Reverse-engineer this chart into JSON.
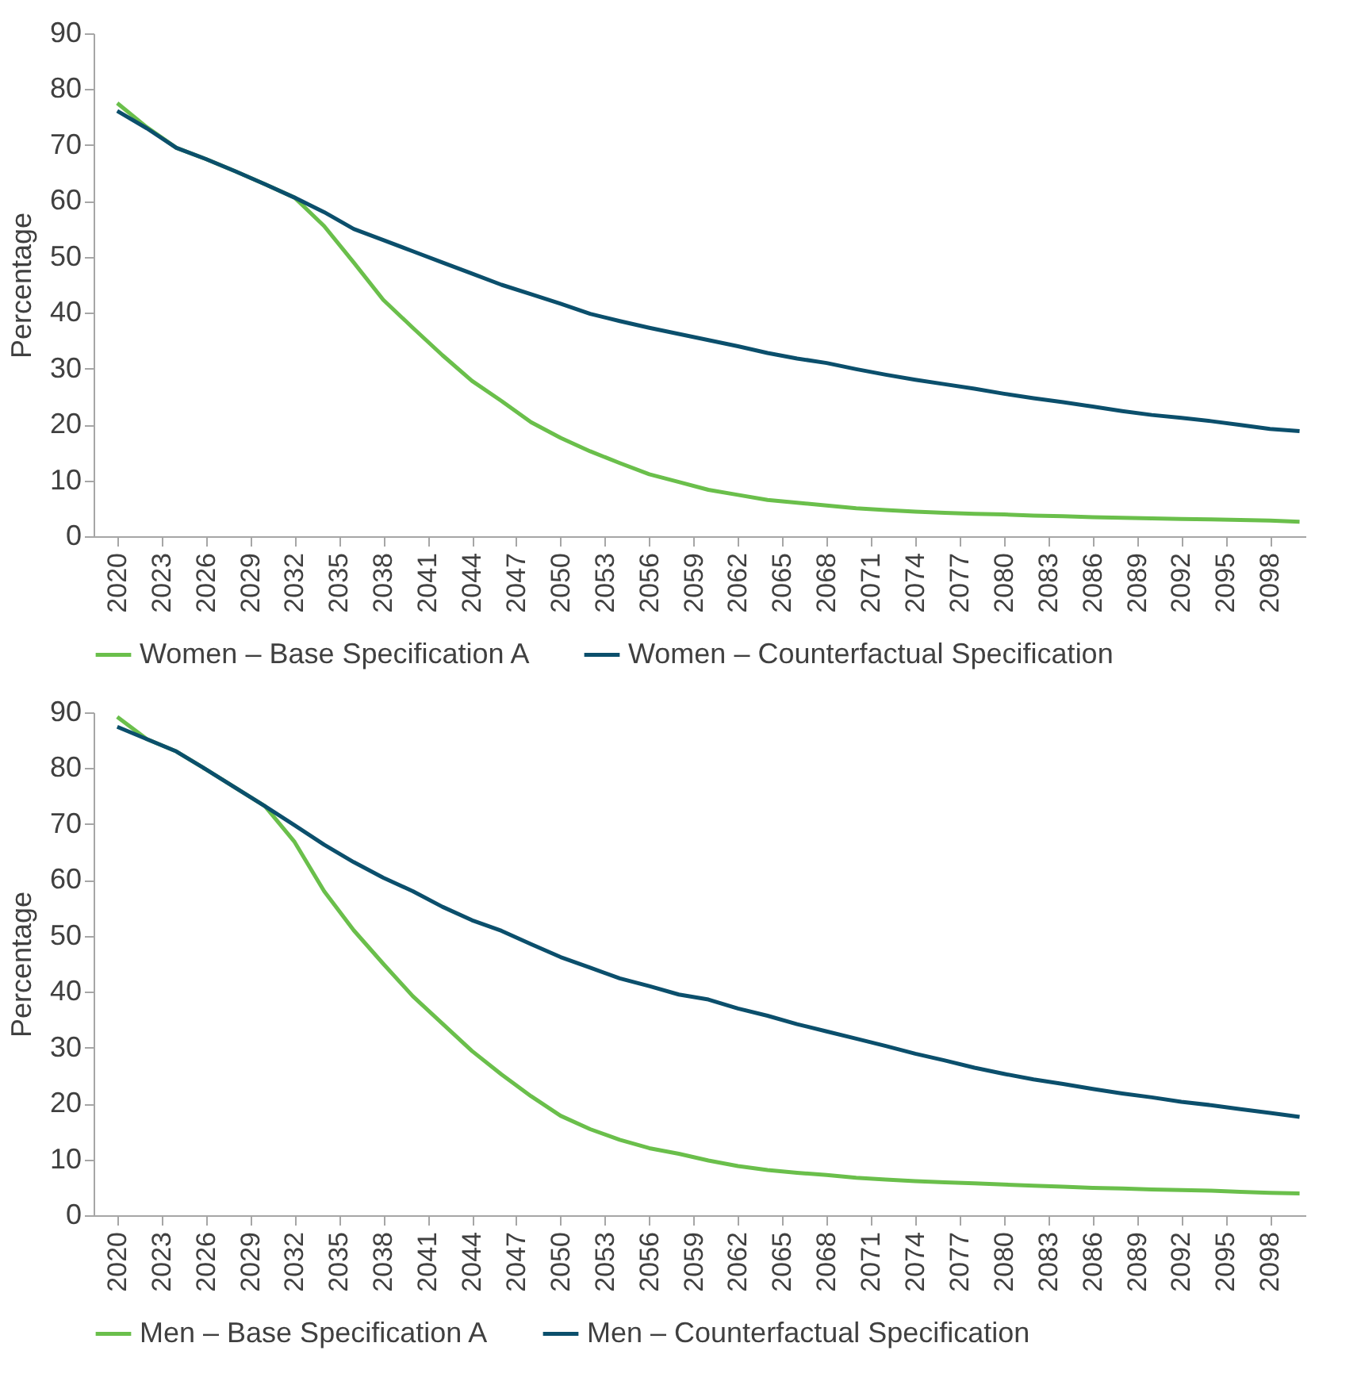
{
  "chart_data": [
    {
      "type": "line",
      "ylabel": "Percentage",
      "legend": "bottom",
      "grid": false,
      "x": [
        2020,
        2022,
        2024,
        2026,
        2028,
        2030,
        2032,
        2034,
        2036,
        2038,
        2040,
        2042,
        2044,
        2046,
        2048,
        2050,
        2052,
        2054,
        2056,
        2058,
        2060,
        2062,
        2064,
        2066,
        2068,
        2070,
        2072,
        2074,
        2076,
        2078,
        2080,
        2082,
        2084,
        2086,
        2088,
        2090,
        2092,
        2094,
        2096,
        2098,
        2100
      ],
      "xlim": [
        2018.4,
        2100.4
      ],
      "xticks": [
        2020,
        2023,
        2026,
        2029,
        2032,
        2035,
        2038,
        2041,
        2044,
        2047,
        2050,
        2053,
        2056,
        2059,
        2062,
        2065,
        2068,
        2071,
        2074,
        2077,
        2080,
        2083,
        2086,
        2089,
        2092,
        2095,
        2098
      ],
      "ylim": [
        0,
        90
      ],
      "yticks": [
        0,
        10,
        20,
        30,
        40,
        50,
        60,
        70,
        80,
        90
      ],
      "series": [
        {
          "name": "Women – Base Specification A",
          "color": "#6abf4b",
          "values": [
            77.5,
            73.2,
            69.5,
            67.5,
            65.3,
            63,
            60.6,
            55.5,
            49,
            42.3,
            37.3,
            32.4,
            27.8,
            24.2,
            20.4,
            17.6,
            15.2,
            13.1,
            11.1,
            9.7,
            8.3,
            7.4,
            6.5,
            6,
            5.5,
            5,
            4.7,
            4.4,
            4.2,
            4,
            3.9,
            3.7,
            3.6,
            3.4,
            3.3,
            3.2,
            3.1,
            3,
            2.9,
            2.8,
            2.6
          ]
        },
        {
          "name": "Women – Counterfactual Specification",
          "color": "#0b4f6c",
          "values": [
            76.1,
            73,
            69.5,
            67.5,
            65.3,
            63,
            60.6,
            58,
            55,
            53,
            51,
            49,
            47,
            45,
            43.3,
            41.6,
            39.8,
            38.5,
            37.3,
            36.2,
            35.1,
            34,
            32.8,
            31.8,
            31,
            29.9,
            28.9,
            28,
            27.2,
            26.4,
            25.5,
            24.7,
            24,
            23.2,
            22.4,
            21.7,
            21.2,
            20.6,
            19.9,
            19.2,
            18.8
          ]
        }
      ]
    },
    {
      "type": "line",
      "ylabel": "Percentage",
      "legend": "bottom",
      "grid": false,
      "x": [
        2020,
        2022,
        2024,
        2026,
        2028,
        2030,
        2032,
        2034,
        2036,
        2038,
        2040,
        2042,
        2044,
        2046,
        2048,
        2050,
        2052,
        2054,
        2056,
        2058,
        2060,
        2062,
        2064,
        2066,
        2068,
        2070,
        2072,
        2074,
        2076,
        2078,
        2080,
        2082,
        2084,
        2086,
        2088,
        2090,
        2092,
        2094,
        2096,
        2098,
        2100
      ],
      "xlim": [
        2018.4,
        2100.4
      ],
      "xticks": [
        2020,
        2023,
        2026,
        2029,
        2032,
        2035,
        2038,
        2041,
        2044,
        2047,
        2050,
        2053,
        2056,
        2059,
        2062,
        2065,
        2068,
        2071,
        2074,
        2077,
        2080,
        2083,
        2086,
        2089,
        2092,
        2095,
        2098
      ],
      "ylim": [
        0,
        90
      ],
      "yticks": [
        0,
        10,
        20,
        30,
        40,
        50,
        60,
        70,
        80,
        90
      ],
      "series": [
        {
          "name": "Men – Base Specification A",
          "color": "#6abf4b",
          "values": [
            89.2,
            85.2,
            83,
            79.8,
            76.5,
            73.2,
            66.8,
            58,
            51,
            45,
            39.2,
            34.3,
            29.4,
            25.2,
            21.3,
            17.8,
            15.4,
            13.5,
            12,
            11,
            9.8,
            8.8,
            8.1,
            7.6,
            7.2,
            6.7,
            6.4,
            6.1,
            5.9,
            5.7,
            5.5,
            5.3,
            5.1,
            4.9,
            4.8,
            4.6,
            4.5,
            4.4,
            4.2,
            4,
            3.9
          ]
        },
        {
          "name": "Men – Counterfactual Specification",
          "color": "#0b4f6c",
          "values": [
            87.4,
            85.2,
            83,
            79.8,
            76.5,
            73.2,
            69.8,
            66.3,
            63.2,
            60.4,
            58,
            55.2,
            52.8,
            50.9,
            48.5,
            46.2,
            44.3,
            42.4,
            41,
            39.5,
            38.6,
            37,
            35.7,
            34.2,
            32.9,
            31.6,
            30.3,
            28.9,
            27.7,
            26.4,
            25.3,
            24.3,
            23.5,
            22.6,
            21.8,
            21.1,
            20.3,
            19.7,
            19,
            18.3,
            17.6
          ]
        }
      ]
    }
  ]
}
